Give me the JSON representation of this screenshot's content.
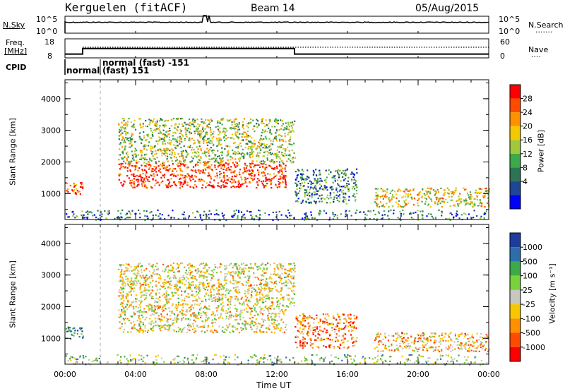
{
  "header": {
    "station": "Kerguelen (fitACF)",
    "beam": "Beam 14",
    "date": "05/Aug/2015"
  },
  "top_panels": {
    "nsky_label": "N.Sky",
    "nsearch_label": "N.Search",
    "nsearch_legend": "·······",
    "nsky_tick_high": "10^5",
    "nsky_tick_low": "10^0",
    "nsearch_tick_high": "10^5",
    "nsearch_tick_low": "10^0",
    "freq_label_line1": "Freq.",
    "freq_label_line2": "[MHz]",
    "freq_tick_high": "18",
    "freq_tick_low": "8",
    "nave_label": "Nave",
    "nave_legend": "····",
    "nave_tick_high": "60",
    "nave_tick_low": "0",
    "cpid_label": "CPID",
    "cpid_segments": [
      {
        "text": "normal",
        "start_hour": 0.0
      },
      {
        "text": "normal (fast) -151",
        "start_hour": 2.0
      },
      {
        "text": "(fast) 151",
        "start_hour": 2.0
      }
    ]
  },
  "time_axis": {
    "label": "Time UT",
    "ticks": [
      "00:00",
      "04:00",
      "08:00",
      "12:00",
      "16:00",
      "20:00",
      "00:00"
    ],
    "range_hours": [
      0,
      24
    ]
  },
  "range_axis": {
    "label": "Slant Range [km]",
    "ticks": [
      "1000",
      "2000",
      "3000",
      "4000"
    ],
    "tick_values": [
      1000,
      2000,
      3000,
      4000
    ],
    "range_km": [
      180,
      4600
    ]
  },
  "power_colorbar": {
    "label": "Power [dB]",
    "ticks": [
      "28",
      "24",
      "20",
      "16",
      "12",
      "8",
      "4"
    ],
    "colors": [
      "#ff0000",
      "#ff4b00",
      "#ff9000",
      "#f5c800",
      "#a0c83c",
      "#3caa4b",
      "#2d7355",
      "#1e4696",
      "#0000ff"
    ]
  },
  "velocity_colorbar": {
    "label": "Velocity [m s⁻¹]",
    "ticks": [
      "1000",
      "500",
      "100",
      "25",
      "-25",
      "-100",
      "-500",
      "-1000"
    ],
    "colors": [
      "#1e3ca0",
      "#2d6eaa",
      "#3caa4b",
      "#78d23c",
      "#c8c8c0",
      "#f5c800",
      "#ff9000",
      "#ff4b00",
      "#ff0000"
    ]
  },
  "chart_data": [
    {
      "type": "line",
      "name": "N.Sky",
      "xlabel": "Time UT",
      "ylabel": "N.Sky",
      "x_range_hours": [
        0,
        24
      ],
      "y_log_range": [
        0,
        5
      ],
      "description_values": {
        "typical_log_nsky": 4.0
      }
    },
    {
      "type": "line",
      "name": "Freq",
      "xlabel": "Time UT",
      "ylabel": "Freq. [MHz]",
      "ylim": [
        8,
        18
      ],
      "x": [
        0.0,
        1.0,
        1.0,
        13.0,
        13.0,
        24.0
      ],
      "values": [
        10.0,
        10.0,
        12.9,
        12.9,
        10.0,
        10.0
      ],
      "nave_dotted": 13.6
    },
    {
      "type": "heatmap",
      "name": "Power",
      "xlabel": "Time UT",
      "ylabel": "Slant Range [km]",
      "regions": [
        {
          "t0": 0.0,
          "t1": 1.0,
          "r0": 1000,
          "r1": 1400,
          "level": 0.85
        },
        {
          "t0": 3.0,
          "t1": 12.5,
          "r0": 1200,
          "r1": 2000,
          "level": 0.9
        },
        {
          "t0": 3.0,
          "t1": 13.0,
          "r0": 2000,
          "r1": 3400,
          "level": 0.5
        },
        {
          "t0": 13.0,
          "t1": 16.5,
          "r0": 700,
          "r1": 1800,
          "level": 0.3
        },
        {
          "t0": 17.5,
          "t1": 24.0,
          "r0": 600,
          "r1": 1200,
          "level": 0.6
        },
        {
          "t0": 0.0,
          "t1": 24.0,
          "r0": 180,
          "r1": 500,
          "level": 0.25
        }
      ]
    },
    {
      "type": "heatmap",
      "name": "Velocity",
      "xlabel": "Time UT",
      "ylabel": "Slant Range [km]",
      "regions": [
        {
          "t0": 0.0,
          "t1": 1.0,
          "r0": 1000,
          "r1": 1400,
          "level": 0.8
        },
        {
          "t0": 3.0,
          "t1": 12.5,
          "r0": 1200,
          "r1": 2000,
          "level": 0.45
        },
        {
          "t0": 3.0,
          "t1": 13.0,
          "r0": 2000,
          "r1": 3400,
          "level": 0.45
        },
        {
          "t0": 13.0,
          "t1": 16.5,
          "r0": 700,
          "r1": 1800,
          "level": 0.25
        },
        {
          "t0": 17.5,
          "t1": 24.0,
          "r0": 600,
          "r1": 1200,
          "level": 0.35
        },
        {
          "t0": 0.0,
          "t1": 24.0,
          "r0": 180,
          "r1": 500,
          "level": 0.6
        }
      ]
    }
  ]
}
